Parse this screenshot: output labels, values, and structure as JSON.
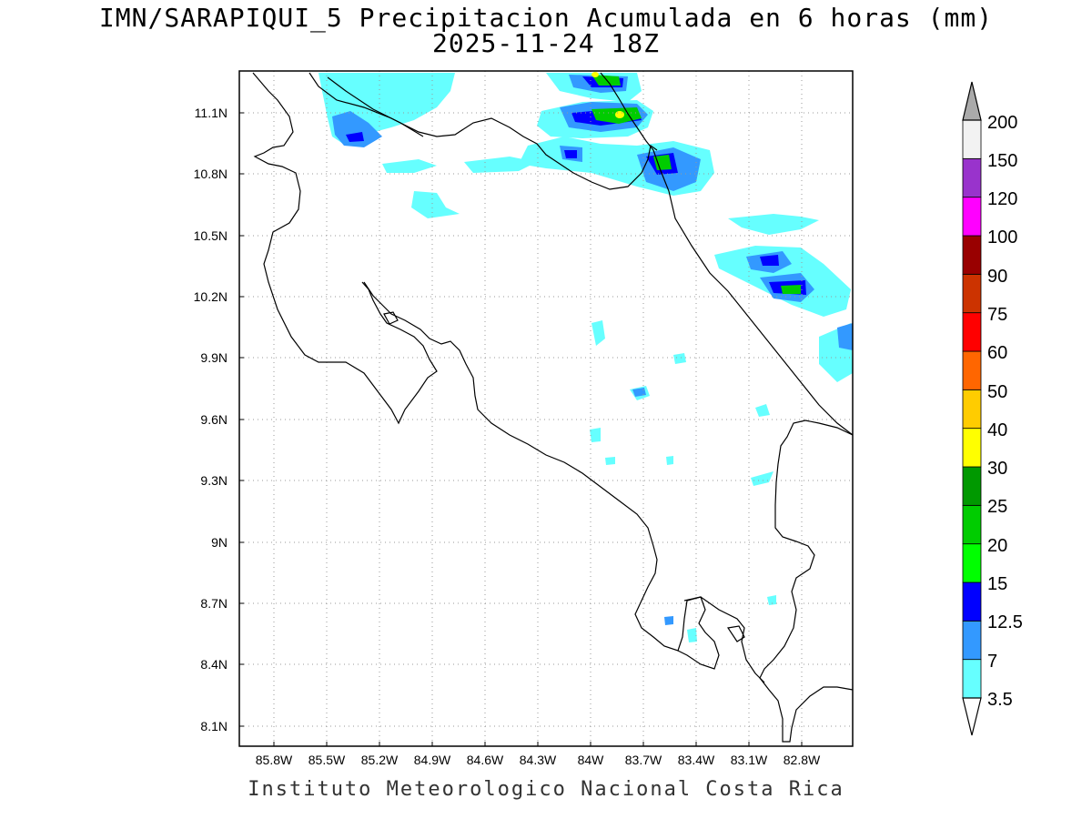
{
  "title_line1": "IMN/SARAPIQUI_5 Precipitacion Acumulada en 6 horas (mm)",
  "title_line2": "2025-11-24 18Z",
  "footer": "Instituto Meteorologico Nacional Costa Rica",
  "map": {
    "lon_range": [
      -86.0,
      -83.0
    ],
    "lat_range": [
      8.0,
      11.2
    ],
    "grid": true,
    "lat_ticks": [
      "11.1N",
      "10.8N",
      "10.5N",
      "10.2N",
      "9.9N",
      "9.6N",
      "9.3N",
      "9N",
      "8.7N",
      "8.4N",
      "8.1N"
    ],
    "lon_ticks": [
      "85.8W",
      "85.5W",
      "85.2W",
      "84.9W",
      "84.6W",
      "84.3W",
      "84W",
      "83.7W",
      "83.4W",
      "83.1W",
      "82.8W"
    ]
  },
  "colorbar": {
    "labels": [
      "3.5",
      "7",
      "12.5",
      "15",
      "20",
      "25",
      "30",
      "40",
      "50",
      "60",
      "75",
      "90",
      "100",
      "120",
      "150",
      "200"
    ],
    "colors": [
      "#66ffff",
      "#3399ff",
      "#0000ff",
      "#00ff00",
      "#00cc00",
      "#009900",
      "#ffff00",
      "#ffcc00",
      "#ff6600",
      "#ff0000",
      "#cc3300",
      "#990000",
      "#ff00ff",
      "#9933cc",
      "#f2f2f2",
      "#aaaaaa"
    ]
  }
}
